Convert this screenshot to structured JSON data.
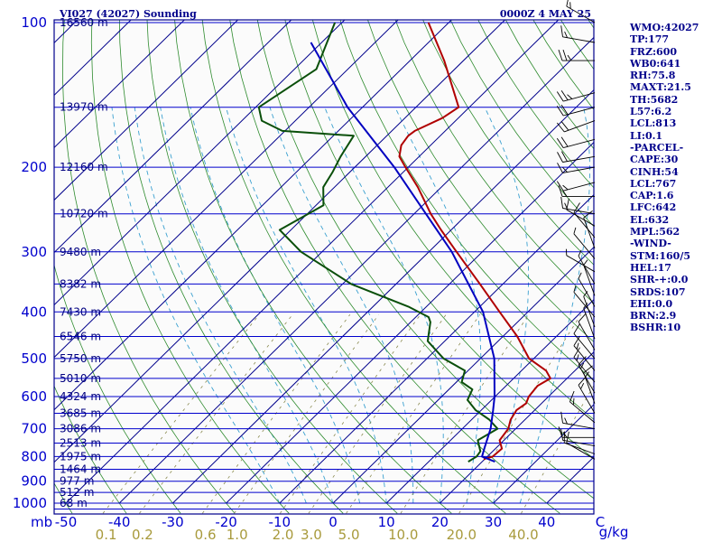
{
  "header": {
    "station": "VI027 (42027) Sounding",
    "time": "0000Z  4 MAY 25"
  },
  "colors": {
    "frame": "#00008b",
    "isobar": "#0000cd",
    "isotherm": "#00008b",
    "dry_adiabat": "#2e8b2e",
    "moist_adiabat": "#3aa0d0",
    "mixing_ratio": "#8a8a50",
    "temperature": "#b00000",
    "dewpoint": "#0a4f0a",
    "parcel": "#0000c0",
    "wind_barb": "#000000"
  },
  "indices": [
    "WMO:42027",
    "TP:177",
    "FRZ:600",
    "WB0:641",
    "RH:75.8",
    "MAXT:21.5",
    "TH:5682",
    "L57:6.2",
    "LCL:813",
    "LI:0.1",
    "-PARCEL-",
    "CAPE:30",
    "CINH:54",
    "LCL:767",
    "CAP:1.6",
    "LFC:642",
    "EL:632",
    "MPL:562",
    "-WIND-",
    "STM:160/5",
    "HEL:17",
    "SHR-+:0.0",
    "SRDS:107",
    "EHI:0.0",
    "BRN:2.9",
    "BSHR:10"
  ],
  "chart_data": {
    "type": "skew-t",
    "title": "",
    "xlabel": "",
    "ylabel": "mb",
    "pressure_axis": {
      "unit": "mb",
      "log_scale": true,
      "range": [
        1000,
        100
      ],
      "ticks": [
        100,
        200,
        300,
        400,
        500,
        600,
        700,
        800,
        900,
        1000
      ]
    },
    "temperature_axis": {
      "unit": "C",
      "ticks": [
        -50,
        -40,
        -30,
        -20,
        -10,
        0,
        10,
        20,
        30,
        40,
        50
      ],
      "tick_labels": [
        "-50",
        "-40",
        "-30",
        "-20",
        "-10",
        "0",
        "10",
        "20",
        "30",
        "40",
        "C"
      ]
    },
    "mixing_ratio_axis": {
      "unit": "g/kg",
      "ticks": [
        0.1,
        0.2,
        0.6,
        1.0,
        2.0,
        3.0,
        5.0,
        10.0,
        20.0,
        40.0
      ],
      "tick_labels": [
        "0.1",
        "0.2",
        "0.6",
        "1.0",
        "2.0",
        "3.0",
        "5.0",
        "10.0",
        "20.0",
        "40.0"
      ]
    },
    "height_levels": [
      {
        "p": 100,
        "label": "16560 m"
      },
      {
        "p": 150,
        "label": "13970 m"
      },
      {
        "p": 200,
        "label": "12160 m"
      },
      {
        "p": 250,
        "label": "10720 m"
      },
      {
        "p": 300,
        "label": "9480 m"
      },
      {
        "p": 350,
        "label": "8382 m"
      },
      {
        "p": 400,
        "label": "7430 m"
      },
      {
        "p": 450,
        "label": "6546 m"
      },
      {
        "p": 500,
        "label": "5750 m"
      },
      {
        "p": 550,
        "label": "5010 m"
      },
      {
        "p": 600,
        "label": "4324 m"
      },
      {
        "p": 650,
        "label": "3685 m"
      },
      {
        "p": 700,
        "label": "3086 m"
      },
      {
        "p": 750,
        "label": "2513 m"
      },
      {
        "p": 800,
        "label": "1975 m"
      },
      {
        "p": 850,
        "label": "1464 m"
      },
      {
        "p": 900,
        "label": "977 m"
      },
      {
        "p": 950,
        "label": "512 m"
      },
      {
        "p": 1000,
        "label": "68 m"
      }
    ],
    "series": [
      {
        "key": "temperature",
        "points": [
          [
            810,
            19.8
          ],
          [
            800,
            21.0
          ],
          [
            770,
            21.2
          ],
          [
            740,
            19.2
          ],
          [
            700,
            18.6
          ],
          [
            670,
            17.3
          ],
          [
            640,
            16.6
          ],
          [
            620,
            17.1
          ],
          [
            600,
            16.3
          ],
          [
            570,
            15.9
          ],
          [
            550,
            16.9
          ],
          [
            530,
            14.6
          ],
          [
            500,
            9.1
          ],
          [
            450,
            2.7
          ],
          [
            400,
            -5.3
          ],
          [
            350,
            -14.3
          ],
          [
            300,
            -24.8
          ],
          [
            270,
            -31.9
          ],
          [
            250,
            -36.9
          ],
          [
            220,
            -44.4
          ],
          [
            200,
            -50.5
          ],
          [
            190,
            -53.7
          ],
          [
            180,
            -55.5
          ],
          [
            172,
            -56.0
          ],
          [
            168,
            -55.7
          ],
          [
            158,
            -53.0
          ],
          [
            150,
            -52.0
          ],
          [
            120,
            -63.6
          ],
          [
            100,
            -73.8
          ]
        ]
      },
      {
        "key": "dewpoint",
        "points": [
          [
            820,
            17.4
          ],
          [
            800,
            18.0
          ],
          [
            780,
            17.7
          ],
          [
            740,
            15.1
          ],
          [
            700,
            16.6
          ],
          [
            670,
            13.3
          ],
          [
            640,
            8.9
          ],
          [
            610,
            5.5
          ],
          [
            580,
            4.4
          ],
          [
            560,
            1.0
          ],
          [
            530,
            -0.6
          ],
          [
            500,
            -6.9
          ],
          [
            460,
            -13.2
          ],
          [
            420,
            -16.3
          ],
          [
            410,
            -17.6
          ],
          [
            390,
            -23.4
          ],
          [
            350,
            -38.4
          ],
          [
            300,
            -53.9
          ],
          [
            270,
            -62.1
          ],
          [
            240,
            -58.6
          ],
          [
            220,
            -62.1
          ],
          [
            205,
            -63.2
          ],
          [
            190,
            -64.7
          ],
          [
            172,
            -66.2
          ],
          [
            168,
            -80.5
          ],
          [
            160,
            -86.3
          ],
          [
            150,
            -89.4
          ],
          [
            125,
            -85.9
          ],
          [
            100,
            -91.3
          ]
        ]
      },
      {
        "key": "parcel",
        "points": [
          [
            820,
            22.4
          ],
          [
            800,
            19.0
          ],
          [
            767,
            17.8
          ],
          [
            700,
            15.3
          ],
          [
            642,
            12.3
          ],
          [
            600,
            9.9
          ],
          [
            500,
            2.6
          ],
          [
            400,
            -8.4
          ],
          [
            300,
            -25.7
          ],
          [
            250,
            -37.8
          ],
          [
            200,
            -52.6
          ],
          [
            150,
            -72.8
          ],
          [
            110,
            -92.0
          ]
        ]
      }
    ],
    "wind_barbs": [
      {
        "p": 100,
        "dir": 300,
        "spd": 15
      },
      {
        "p": 110,
        "dir": 280,
        "spd": 15
      },
      {
        "p": 120,
        "dir": 270,
        "spd": 25
      },
      {
        "p": 140,
        "dir": 255,
        "spd": 25
      },
      {
        "p": 150,
        "dir": 255,
        "spd": 20
      },
      {
        "p": 160,
        "dir": 250,
        "spd": 20
      },
      {
        "p": 175,
        "dir": 255,
        "spd": 20
      },
      {
        "p": 190,
        "dir": 260,
        "spd": 20
      },
      {
        "p": 200,
        "dir": 260,
        "spd": 15
      },
      {
        "p": 215,
        "dir": 255,
        "spd": 15
      },
      {
        "p": 230,
        "dir": 270,
        "spd": 15
      },
      {
        "p": 250,
        "dir": 280,
        "spd": 15
      },
      {
        "p": 265,
        "dir": 300,
        "spd": 10
      },
      {
        "p": 280,
        "dir": 320,
        "spd": 10
      },
      {
        "p": 295,
        "dir": 340,
        "spd": 10
      },
      {
        "p": 310,
        "dir": 320,
        "spd": 5
      },
      {
        "p": 330,
        "dir": 300,
        "spd": 5
      },
      {
        "p": 350,
        "dir": 330,
        "spd": 5
      },
      {
        "p": 370,
        "dir": 340,
        "spd": 5
      },
      {
        "p": 390,
        "dir": 330,
        "spd": 5
      },
      {
        "p": 410,
        "dir": 320,
        "spd": 5
      },
      {
        "p": 430,
        "dir": 340,
        "spd": 5
      },
      {
        "p": 455,
        "dir": 340,
        "spd": 5
      },
      {
        "p": 480,
        "dir": 330,
        "spd": 10
      },
      {
        "p": 500,
        "dir": 320,
        "spd": 10
      },
      {
        "p": 530,
        "dir": 320,
        "spd": 15
      },
      {
        "p": 560,
        "dir": 320,
        "spd": 15
      },
      {
        "p": 590,
        "dir": 330,
        "spd": 15
      },
      {
        "p": 620,
        "dir": 340,
        "spd": 15
      },
      {
        "p": 650,
        "dir": 330,
        "spd": 15
      },
      {
        "p": 680,
        "dir": 310,
        "spd": 15
      },
      {
        "p": 700,
        "dir": 280,
        "spd": 15
      },
      {
        "p": 730,
        "dir": 270,
        "spd": 15
      },
      {
        "p": 760,
        "dir": 280,
        "spd": 10
      },
      {
        "p": 790,
        "dir": 290,
        "spd": 10
      },
      {
        "p": 810,
        "dir": 300,
        "spd": 10
      }
    ]
  }
}
